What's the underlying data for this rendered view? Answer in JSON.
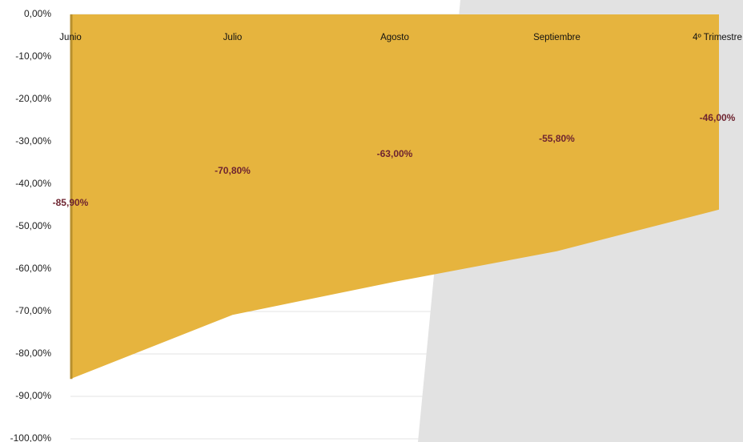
{
  "chart_data": {
    "type": "area",
    "categories": [
      "Junio",
      "Julio",
      "Agosto",
      "Septiembre",
      "4º Trimestre"
    ],
    "values": [
      -85.9,
      -70.8,
      -63,
      -55.8,
      -46
    ],
    "value_labels": [
      "-85,90%",
      "-70,80%",
      "-63,00%",
      "-55,80%",
      "-46,00%"
    ],
    "color": "#e6b43e",
    "ylim": [
      -100,
      0
    ],
    "yticks": [
      {
        "value": 0,
        "label": "0,00%"
      },
      {
        "value": -10,
        "label": "-10,00%"
      },
      {
        "value": -20,
        "label": "-20,00%"
      },
      {
        "value": -30,
        "label": "-30,00%"
      },
      {
        "value": -40,
        "label": "-40,00%"
      },
      {
        "value": -50,
        "label": "-50,00%"
      },
      {
        "value": -60,
        "label": "-60,00%"
      },
      {
        "value": -70,
        "label": "-70,00%"
      },
      {
        "value": -80,
        "label": "-80,00%"
      },
      {
        "value": -90,
        "label": "-90,00%"
      },
      {
        "value": -100,
        "label": "-100,00%"
      }
    ],
    "grid": true
  }
}
